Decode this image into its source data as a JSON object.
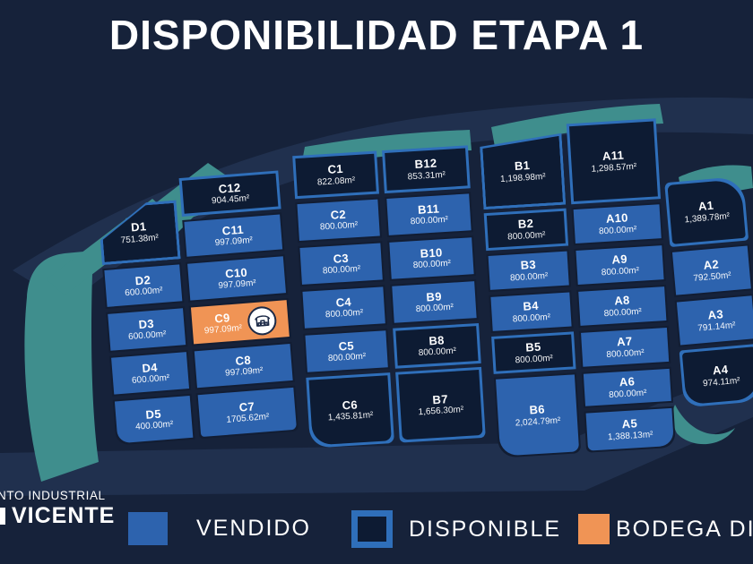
{
  "title": "DISPONIBILIDAD ETAPA 1",
  "logo": {
    "line1": "NTO INDUSTRIAL",
    "line2": "VICENTE"
  },
  "legend": [
    {
      "key": "vendido",
      "label": "VENDIDO"
    },
    {
      "key": "disponible",
      "label": "DISPONIBLE"
    },
    {
      "key": "bodega",
      "label": "BODEGA DISPONIBLE"
    }
  ],
  "colors": {
    "background": "#16223a",
    "road": "#20304e",
    "greenery": "#3f8e8d",
    "street": "#121d33",
    "vendido": "#2d63ae",
    "disponible_fill": "#0d1b33",
    "disponible_border": "#2f6fba",
    "bodega": "#f09455",
    "text": "#ffffff",
    "badge_bg": "#ffffff",
    "badge_stroke": "#1c2a47"
  },
  "map": {
    "groups": [
      {
        "name": "block-dc",
        "columns": [
          {
            "name": "column-d",
            "lots": [
              {
                "id": "D1",
                "area": "751.38m²",
                "status": "disponible"
              },
              {
                "id": "D2",
                "area": "600.00m²",
                "status": "vendido"
              },
              {
                "id": "D3",
                "area": "600.00m²",
                "status": "vendido"
              },
              {
                "id": "D4",
                "area": "600.00m²",
                "status": "vendido"
              },
              {
                "id": "D5",
                "area": "400.00m²",
                "status": "vendido"
              }
            ]
          },
          {
            "name": "column-c-left",
            "lots": [
              {
                "id": "C12",
                "area": "904.45m²",
                "status": "disponible"
              },
              {
                "id": "C11",
                "area": "997.09m²",
                "status": "vendido"
              },
              {
                "id": "C10",
                "area": "997.09m²",
                "status": "vendido"
              },
              {
                "id": "C9",
                "area": "997.09m²",
                "status": "bodega",
                "badge": "warehouse-icon"
              },
              {
                "id": "C8",
                "area": "997.09m²",
                "status": "vendido"
              },
              {
                "id": "C7",
                "area": "1705.62m²",
                "status": "vendido"
              }
            ]
          }
        ]
      },
      {
        "name": "block-cb",
        "columns": [
          {
            "name": "column-c-right",
            "lots": [
              {
                "id": "C1",
                "area": "822.08m²",
                "status": "disponible"
              },
              {
                "id": "C2",
                "area": "800.00m²",
                "status": "vendido"
              },
              {
                "id": "C3",
                "area": "800.00m²",
                "status": "vendido"
              },
              {
                "id": "C4",
                "area": "800.00m²",
                "status": "vendido"
              },
              {
                "id": "C5",
                "area": "800.00m²",
                "status": "vendido"
              },
              {
                "id": "C6",
                "area": "1,435.81m²",
                "status": "disponible"
              }
            ]
          },
          {
            "name": "column-b-left",
            "lots": [
              {
                "id": "B12",
                "area": "853.31m²",
                "status": "disponible"
              },
              {
                "id": "B11",
                "area": "800.00m²",
                "status": "vendido"
              },
              {
                "id": "B10",
                "area": "800.00m²",
                "status": "vendido"
              },
              {
                "id": "B9",
                "area": "800.00m²",
                "status": "vendido"
              },
              {
                "id": "B8",
                "area": "800.00m²",
                "status": "disponible"
              },
              {
                "id": "B7",
                "area": "1,656.30m²",
                "status": "disponible"
              }
            ]
          }
        ]
      },
      {
        "name": "block-ba",
        "columns": [
          {
            "name": "column-b-right",
            "lots": [
              {
                "id": "B1",
                "area": "1,198.98m²",
                "status": "disponible"
              },
              {
                "id": "B2",
                "area": "800.00m²",
                "status": "disponible"
              },
              {
                "id": "B3",
                "area": "800.00m²",
                "status": "vendido"
              },
              {
                "id": "B4",
                "area": "800.00m²",
                "status": "vendido"
              },
              {
                "id": "B5",
                "area": "800.00m²",
                "status": "disponible"
              },
              {
                "id": "B6",
                "area": "2,024.79m²",
                "status": "vendido"
              }
            ]
          },
          {
            "name": "column-a-left",
            "lots": [
              {
                "id": "A11",
                "area": "1,298.57m²",
                "status": "disponible"
              },
              {
                "id": "A10",
                "area": "800.00m²",
                "status": "vendido"
              },
              {
                "id": "A9",
                "area": "800.00m²",
                "status": "vendido"
              },
              {
                "id": "A8",
                "area": "800.00m²",
                "status": "vendido"
              },
              {
                "id": "A7",
                "area": "800.00m²",
                "status": "vendido"
              },
              {
                "id": "A6",
                "area": "800.00m²",
                "status": "vendido"
              },
              {
                "id": "A5",
                "area": "1,388.13m²",
                "status": "vendido"
              }
            ]
          }
        ]
      },
      {
        "name": "block-a-right",
        "columns": [
          {
            "name": "column-a-right",
            "lots": [
              {
                "id": "A1",
                "area": "1,389.78m²",
                "status": "disponible"
              },
              {
                "id": "A2",
                "area": "792.50m²",
                "status": "vendido"
              },
              {
                "id": "A3",
                "area": "791.14m²",
                "status": "vendido"
              },
              {
                "id": "A4",
                "area": "974.11m²",
                "status": "disponible"
              }
            ]
          }
        ]
      }
    ]
  }
}
